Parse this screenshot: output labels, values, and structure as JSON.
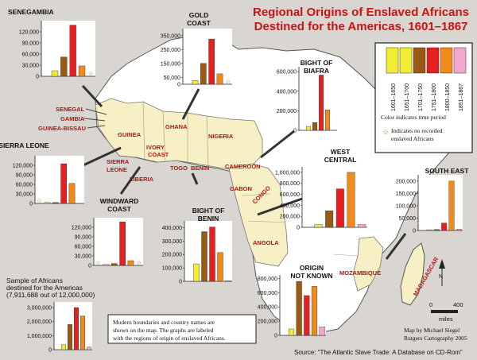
{
  "title_line1": "Regional Origins of Enslaved Africans",
  "title_line2": "Destined for the Americas, 1601–1867",
  "legend": {
    "periods": [
      {
        "label": "1601–1650",
        "color": "#f2ec33"
      },
      {
        "label": "1651–1700",
        "color": "#f2ec33"
      },
      {
        "label": "1701–1750",
        "color": "#9b5a14"
      },
      {
        "label": "1751–1800",
        "color": "#e81f1f"
      },
      {
        "label": "1800–1850",
        "color": "#f08a1a"
      },
      {
        "label": "1851–1867",
        "color": "#f4a6cf"
      }
    ],
    "color_note": "Color indicates time period",
    "star_note_line1": "Indicates no recorded",
    "star_note_line2": "enslaved Africans"
  },
  "countries": [
    "SENEGAL",
    "GAMBIA",
    "GUINEA-BISSAU",
    "GUINEA",
    "SIERRA",
    "LEONE",
    "LIBERIA",
    "IVORY",
    "COAST",
    "GHANA",
    "TOGO",
    "BENIN",
    "NIGERIA",
    "CAMEROON",
    "GABON",
    "CONGO",
    "ANGOLA",
    "MOZAMBIQUE",
    "MADAGASCAR"
  ],
  "charts": [
    {
      "region": "SENEGAMBIA",
      "label_lines": [
        "SENEGAMBIA"
      ],
      "ticks": [
        "120,000",
        "90,000",
        "60,000",
        "30,000",
        "0"
      ],
      "ymax": 150000,
      "values": [
        0,
        15000,
        52000,
        138000,
        28000,
        0
      ],
      "stars": [
        false,
        false,
        false,
        false,
        false,
        true
      ]
    },
    {
      "region": "GOLD COAST",
      "label_lines": [
        "GOLD",
        "COAST"
      ],
      "ticks": [
        "350,000",
        "250,000",
        "150,000",
        "50,000",
        "0"
      ],
      "ymax": 400000,
      "values": [
        0,
        27000,
        150000,
        325000,
        75000,
        0
      ],
      "stars": [
        false,
        false,
        false,
        false,
        false,
        true
      ]
    },
    {
      "region": "BIGHT OF BIAFRA",
      "label_lines": [
        "BIGHT OF",
        "BIAFRA"
      ],
      "ticks": [
        "600,000",
        "400,000",
        "200,000",
        "0"
      ],
      "ymax": 650000,
      "values": [
        0,
        40000,
        80000,
        565000,
        210000,
        0
      ],
      "stars": [
        false,
        false,
        false,
        false,
        false,
        false
      ]
    },
    {
      "region": "SIERRA LEONE",
      "label_lines": [
        "SIERRA LEONE"
      ],
      "ticks": [
        "120,000",
        "90,000",
        "60,000",
        "30,000",
        "0"
      ],
      "ymax": 150000,
      "values": [
        0,
        3000,
        3000,
        125000,
        63000,
        0
      ],
      "stars": [
        true,
        false,
        false,
        false,
        false,
        false
      ]
    },
    {
      "region": "WINDWARD COAST",
      "label_lines": [
        "WINDWARD",
        "COAST"
      ],
      "ticks": [
        "120,000",
        "90,000",
        "60,000",
        "30,000",
        "0"
      ],
      "ymax": 150000,
      "values": [
        0,
        3000,
        6000,
        137000,
        15000,
        0
      ],
      "stars": [
        true,
        false,
        false,
        false,
        false,
        true
      ]
    },
    {
      "region": "BIGHT OF BENIN",
      "label_lines": [
        "BIGHT OF",
        "BENIN"
      ],
      "ticks": [
        "400,000",
        "300,000",
        "200,000",
        "100,000",
        "0"
      ],
      "ymax": 450000,
      "values": [
        0,
        130000,
        370000,
        405000,
        215000,
        5000
      ],
      "stars": [
        false,
        false,
        false,
        false,
        false,
        false
      ]
    },
    {
      "region": "WEST CENTRAL",
      "label_lines": [
        "WEST",
        "CENTRAL"
      ],
      "ticks": [
        "1,000,000",
        "800,000",
        "600,000",
        "400,000",
        "200,000",
        "0"
      ],
      "ymax": 1100000,
      "values": [
        0,
        50000,
        300000,
        700000,
        1000000,
        50000
      ],
      "stars": [
        false,
        false,
        false,
        false,
        false,
        false
      ]
    },
    {
      "region": "SOUTH EAST",
      "label_lines": [
        "SOUTH EAST"
      ],
      "ticks": [
        "200,000",
        "150,000",
        "100,000",
        "50,000",
        "0"
      ],
      "ymax": 225000,
      "values": [
        0,
        3000,
        4000,
        30000,
        200000,
        5000
      ],
      "stars": [
        false,
        false,
        false,
        false,
        false,
        false
      ]
    },
    {
      "region": "ORIGIN NOT KNOWN",
      "label_lines": [
        "ORIGIN",
        "NOT KNOWN"
      ],
      "ticks": [
        "800,000",
        "600,000",
        "400,000",
        "200,000",
        "0"
      ],
      "ymax": 850000,
      "values": [
        0,
        90000,
        760000,
        560000,
        690000,
        120000
      ],
      "stars": [
        false,
        false,
        false,
        false,
        false,
        false
      ]
    },
    {
      "region": "SAMPLE",
      "label_lines": [
        "Sample of Africans",
        "destined for the Americas",
        "(7,911,688 out of 12,000,000)"
      ],
      "ticks": [
        "3,000,000",
        "2,000,000",
        "1,000,000",
        "0"
      ],
      "ymax": 3400000,
      "values": [
        0,
        350000,
        1800000,
        3000000,
        2400000,
        180000
      ],
      "stars": [
        false,
        false,
        false,
        false,
        false,
        false
      ]
    }
  ],
  "info_box": [
    "Modern boundaries and country names are",
    "shown on the map.  The graphs are labeled",
    "with the regions of origin of enslaved Africans."
  ],
  "scale": {
    "zero": "0",
    "max": "400",
    "unit": "miles"
  },
  "north": "N",
  "credit_line1": "Map by Michael Siegel",
  "credit_line2": "Rutgers Cartography 2005",
  "source": "Source:  “The Atlantic Slave Trade: A Database on CD-Rom”"
}
